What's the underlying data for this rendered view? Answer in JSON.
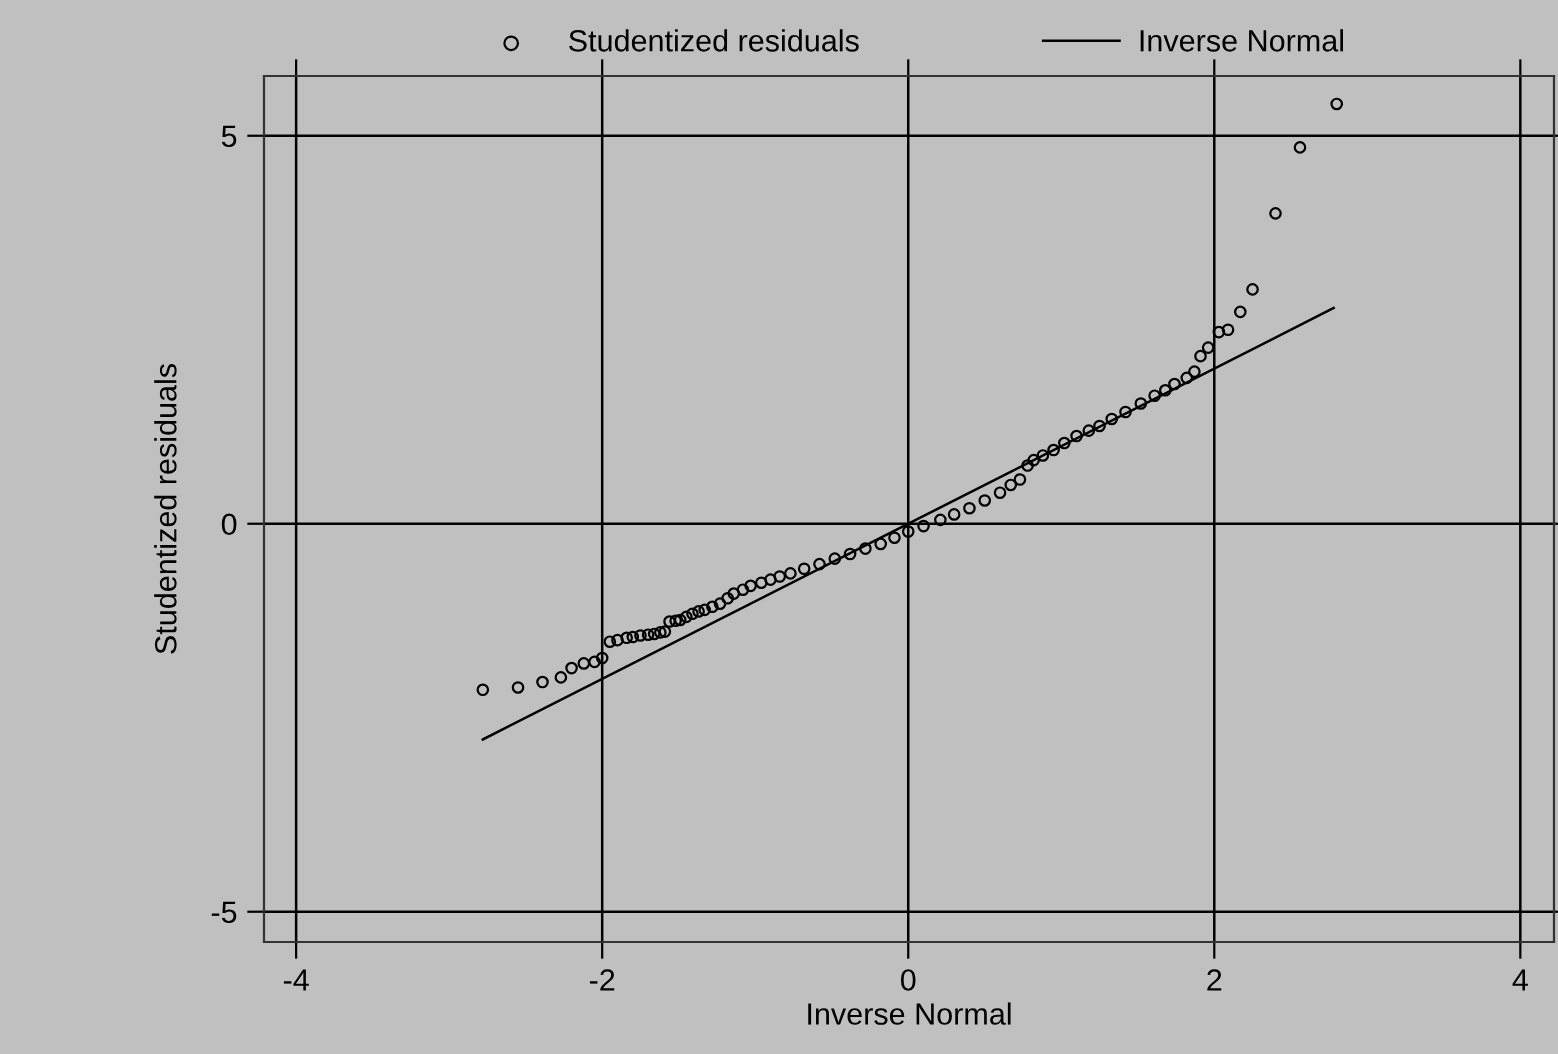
{
  "chart_data": {
    "type": "scatter",
    "xlabel": "Inverse Normal",
    "ylabel": "Studentized residuals",
    "xlim": [
      -4.21,
      4.22
    ],
    "ylim": [
      -5.39,
      5.77
    ],
    "xticks": [
      -4,
      -2,
      0,
      2,
      4
    ],
    "yticks": [
      -5,
      0,
      5
    ],
    "grid": true,
    "legend": "top",
    "series": [
      {
        "name": "Studentized residuals",
        "marker": "circle",
        "color": "#000000",
        "x": [
          -2.78,
          -2.55,
          -2.39,
          -2.27,
          -2.2,
          -2.12,
          -2.05,
          -2.0,
          -1.95,
          -1.9,
          -1.84,
          -1.8,
          -1.75,
          -1.7,
          -1.66,
          -1.62,
          -1.59,
          -1.56,
          -1.52,
          -1.49,
          -1.45,
          -1.41,
          -1.37,
          -1.33,
          -1.28,
          -1.23,
          -1.18,
          -1.14,
          -1.08,
          -1.03,
          -0.96,
          -0.9,
          -0.84,
          -0.77,
          -0.68,
          -0.58,
          -0.48,
          -0.38,
          -0.28,
          -0.18,
          -0.09,
          0.0,
          0.1,
          0.21,
          0.3,
          0.4,
          0.5,
          0.6,
          0.67,
          0.73,
          0.78,
          0.82,
          0.88,
          0.95,
          1.02,
          1.1,
          1.18,
          1.25,
          1.33,
          1.42,
          1.52,
          1.61,
          1.68,
          1.74,
          1.82,
          1.87,
          1.91,
          1.96,
          2.03,
          2.09,
          2.17,
          2.25,
          2.4,
          2.56,
          2.8
        ],
        "values": [
          -2.14,
          -2.11,
          -2.04,
          -1.98,
          -1.86,
          -1.8,
          -1.78,
          -1.73,
          -1.52,
          -1.5,
          -1.47,
          -1.46,
          -1.44,
          -1.43,
          -1.42,
          -1.4,
          -1.39,
          -1.26,
          -1.25,
          -1.24,
          -1.2,
          -1.16,
          -1.13,
          -1.11,
          -1.07,
          -1.03,
          -0.96,
          -0.9,
          -0.85,
          -0.8,
          -0.76,
          -0.72,
          -0.68,
          -0.64,
          -0.58,
          -0.52,
          -0.45,
          -0.39,
          -0.32,
          -0.26,
          -0.18,
          -0.1,
          -0.03,
          0.05,
          0.12,
          0.2,
          0.3,
          0.4,
          0.5,
          0.57,
          0.75,
          0.82,
          0.88,
          0.95,
          1.04,
          1.13,
          1.2,
          1.26,
          1.35,
          1.44,
          1.55,
          1.65,
          1.72,
          1.8,
          1.88,
          1.96,
          2.16,
          2.27,
          2.47,
          2.5,
          2.73,
          3.02,
          4.0,
          4.85,
          5.41
        ]
      },
      {
        "name": "Inverse Normal",
        "type": "line",
        "color": "#000000",
        "x": [
          -2.78,
          2.78
        ],
        "values": [
          -2.78,
          2.78
        ]
      }
    ]
  }
}
